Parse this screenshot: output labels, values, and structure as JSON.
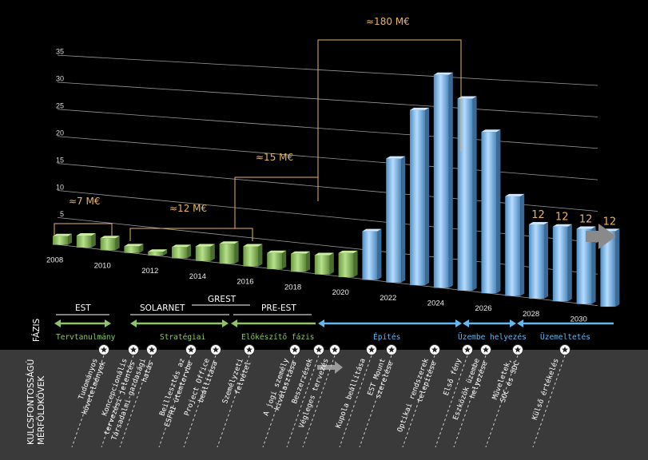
{
  "chart_data": {
    "type": "bar",
    "x": [
      2008,
      2009,
      2010,
      2011,
      2012,
      2013,
      2014,
      2015,
      2016,
      2017,
      2018,
      2019,
      2020,
      2021,
      2022,
      2023,
      2024,
      2025,
      2026,
      2027,
      2028,
      2029,
      2030,
      2031
    ],
    "x_labels": [
      "2008",
      "",
      "2010",
      "",
      "2012",
      "",
      "2014",
      "",
      "2016",
      "",
      "2018",
      "",
      "2020",
      "",
      "2022",
      "",
      "2024",
      "",
      "2026",
      "",
      "2028",
      "",
      "2030",
      ""
    ],
    "values": [
      1.6,
      2.2,
      2.2,
      1.2,
      0.7,
      2.0,
      2.6,
      3.5,
      3.5,
      2.8,
      3.1,
      3.3,
      4.1,
      8.2,
      20.8,
      29.2,
      35.3,
      31.6,
      26.4,
      16.2,
      12,
      12,
      12,
      12
    ],
    "colors": [
      "#8ac35a",
      "#8ac35a",
      "#8ac35a",
      "#8ac35a",
      "#8ac35a",
      "#8ac35a",
      "#8ac35a",
      "#8ac35a",
      "#8ac35a",
      "#8ac35a",
      "#8ac35a",
      "#8ac35a",
      "#8ac35a",
      "#64b2ee",
      "#64b2ee",
      "#64b2ee",
      "#64b2ee",
      "#64b2ee",
      "#64b2ee",
      "#64b2ee",
      "#64b2ee",
      "#64b2ee",
      "#64b2ee",
      "#64b2ee"
    ],
    "yticks": [
      "5",
      "10",
      "15",
      "20",
      "25",
      "30",
      "35"
    ],
    "ylim": [
      0,
      36
    ],
    "value_labels": [
      "",
      "",
      "",
      "",
      "",
      "",
      "",
      "",
      "",
      "",
      "",
      "",
      "",
      "",
      "",
      "",
      "",
      "",
      "",
      "",
      "12",
      "12",
      "12",
      "12"
    ],
    "budget_labels": [
      "≈7 M€",
      "≈12 M€",
      "≈15 M€",
      "≈180 M€"
    ],
    "grid": true
  },
  "phases": {
    "side_label": "FÁZIS",
    "top": [
      "EST",
      "SOLARNET",
      "GREST",
      "PRE-EST"
    ],
    "bottom": [
      "Tervtanulmány",
      "Stratégiai",
      "Előkészítő fázis",
      "Építés",
      "Üzembe helyezés",
      "Üzemeltetés"
    ]
  },
  "milestones": {
    "side_label_1": "KULCSFONTOSSÁGÚ",
    "side_label_2": "MÉRFÖLDKÖVEK",
    "items": [
      [
        "Tudományos",
        "követelmények"
      ],
      [
        "Koncepcionális",
        "tervezési jelentés"
      ],
      [
        "Társadalmi-gazdasági",
        "hatás"
      ],
      [
        "Beillesztés az",
        "ESFRI ütemtervbe"
      ],
      [
        "Project Office",
        "beállítása"
      ],
      [
        "Személyzeti",
        "felvétel"
      ],
      [
        "A jogi személy",
        "kiválasztása"
      ],
      [
        "Beszerzések"
      ],
      [
        "Végleges tervezés"
      ],
      [
        "Kupola beállítása"
      ],
      [
        "EST Mount",
        "szerelése"
      ],
      [
        "Optikai rendszerek",
        "telepítése"
      ],
      [
        "Első fény"
      ],
      [
        "Eszközök üzembe",
        "helyezése"
      ],
      [
        "Műveletek,",
        "SOC és SDC"
      ],
      [
        "Külső értékelés"
      ]
    ]
  },
  "colors": {
    "green": "#8ac35a",
    "blue": "#64b2ee",
    "gold": "#e8b560",
    "grid": "#9a9a9a",
    "band": "#3a3a3a"
  }
}
